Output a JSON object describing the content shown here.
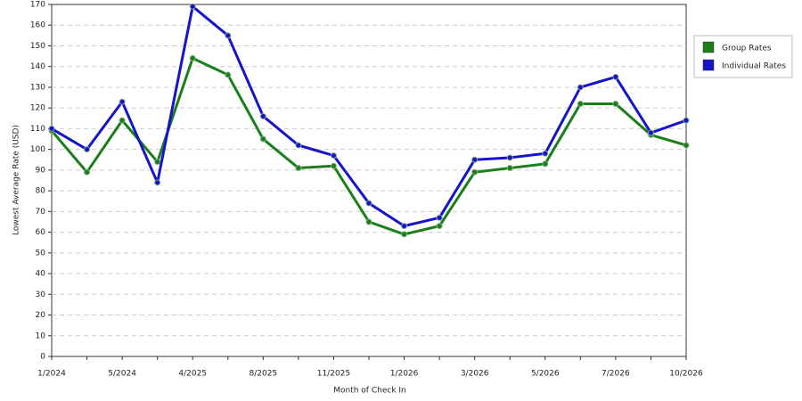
{
  "chart_data": {
    "type": "line",
    "x_label": "Month of Check In",
    "y_label": "Lowest Average Rate (USD)",
    "categories": [
      "1/2024",
      null,
      "5/2024",
      null,
      "4/2025",
      null,
      "8/2025",
      null,
      "11/2025",
      null,
      "1/2026",
      null,
      "3/2026",
      null,
      "5/2026",
      null,
      "7/2026",
      null,
      "10/2026"
    ],
    "series": [
      {
        "name": "Group Rates",
        "color": "#1a7f1a",
        "values": [
          109,
          89,
          114,
          94,
          144,
          136,
          105,
          91,
          92,
          65,
          59,
          63,
          89,
          91,
          93,
          122,
          122,
          107,
          102
        ]
      },
      {
        "name": "Individual Rates",
        "color": "#1414c8",
        "values": [
          110,
          100,
          123,
          84,
          169,
          155,
          116,
          102,
          97,
          74,
          63,
          67,
          95,
          96,
          98,
          130,
          135,
          108,
          114
        ]
      }
    ],
    "ylim": [
      0,
      170
    ],
    "yticks": [
      0,
      10,
      20,
      30,
      40,
      50,
      60,
      70,
      80,
      90,
      100,
      110,
      120,
      130,
      140,
      150,
      160,
      170
    ],
    "grid": true,
    "legend": "right"
  }
}
